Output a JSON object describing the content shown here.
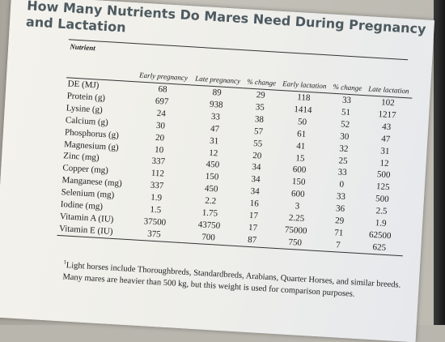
{
  "slide": {
    "title": "How Many Nutrients Do Mares Need During Pregnancy and Lactation"
  },
  "table": {
    "columns": [
      "Nutrient",
      "Early pregnancy",
      "Late pregnancy",
      "% change",
      "Early lactation",
      "% change",
      "Late lactation"
    ],
    "rows": [
      [
        "DE (MJ)",
        "68",
        "89",
        "29",
        "118",
        "33",
        "102"
      ],
      [
        "Protein (g)",
        "697",
        "938",
        "35",
        "1414",
        "51",
        "1217"
      ],
      [
        "Lysine (g)",
        "24",
        "33",
        "38",
        "50",
        "52",
        "43"
      ],
      [
        "Calcium (g)",
        "30",
        "47",
        "57",
        "61",
        "30",
        "47"
      ],
      [
        "Phosphorus (g)",
        "20",
        "31",
        "55",
        "41",
        "32",
        "31"
      ],
      [
        "Magnesium (g)",
        "10",
        "12",
        "20",
        "15",
        "25",
        "12"
      ],
      [
        "Zinc (mg)",
        "337",
        "450",
        "34",
        "600",
        "33",
        "500"
      ],
      [
        "Copper (mg)",
        "112",
        "150",
        "34",
        "150",
        "0",
        "125"
      ],
      [
        "Manganese (mg)",
        "337",
        "450",
        "34",
        "600",
        "33",
        "500"
      ],
      [
        "Selenium (mg)",
        "1.9",
        "2.2",
        "16",
        "3",
        "36",
        "2.5"
      ],
      [
        "Iodine (mg)",
        "1.5",
        "1.75",
        "17",
        "2.25",
        "29",
        "1.9"
      ],
      [
        "Vitamin A (IU)",
        "37500",
        "43750",
        "17",
        "75000",
        "71",
        "62500"
      ],
      [
        "Vitamin E (IU)",
        "375",
        "700",
        "87",
        "750",
        "7",
        "625"
      ]
    ]
  },
  "footnote": {
    "marker": "1",
    "text": "Light horses include Thoroughbreds, Standardbreds, Arabians, Quarter Horses, and similar breeds. Many mares are heavier than 500 kg, but this weight is used for comparison purposes."
  }
}
